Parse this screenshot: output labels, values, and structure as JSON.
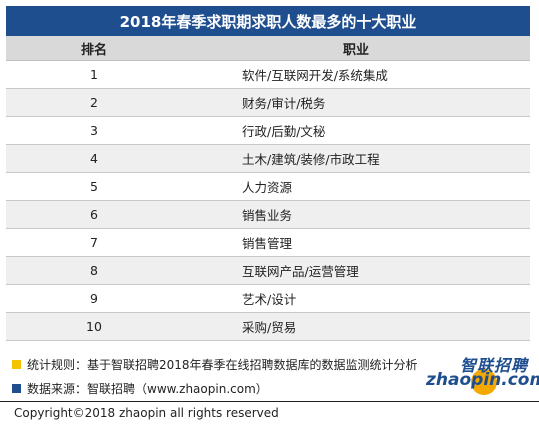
{
  "title": "2018年春季求职期求职人数最多的十大职业",
  "table": {
    "headers": {
      "rank": "排名",
      "job": "职业"
    },
    "rows": [
      {
        "rank": "1",
        "job": "软件/互联网开发/系统集成"
      },
      {
        "rank": "2",
        "job": "财务/审计/税务"
      },
      {
        "rank": "3",
        "job": "行政/后勤/文秘"
      },
      {
        "rank": "4",
        "job": "土木/建筑/装修/市政工程"
      },
      {
        "rank": "5",
        "job": "人力资源"
      },
      {
        "rank": "6",
        "job": "销售业务"
      },
      {
        "rank": "7",
        "job": "销售管理"
      },
      {
        "rank": "8",
        "job": "互联网产品/运营管理"
      },
      {
        "rank": "9",
        "job": "艺术/设计"
      },
      {
        "rank": "10",
        "job": "采购/贸易"
      }
    ]
  },
  "notes": {
    "rule": "统计规则：基于智联招聘2018年春季在线招聘数据库的数据监测统计分析",
    "source": "数据来源：智联招聘（www.zhaopin.com）",
    "rule_color": "#f5c400",
    "source_color": "#1f4e8f"
  },
  "logo": {
    "cn": "智联招聘",
    "en": "zhaopin.com"
  },
  "copyright": "Copyright©2018 zhaopin all rights reserved",
  "colors": {
    "header_bg": "#1f4e8f",
    "accent": "#f5a800"
  }
}
